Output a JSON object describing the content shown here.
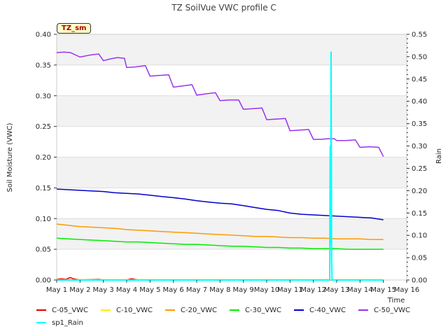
{
  "chart_data": {
    "type": "line",
    "title": "TZ SoilVue VWC profile C",
    "site_label": "TZ_sm",
    "xlabel": "Time",
    "ylabel": "Soil Moisture (VWC)",
    "y2label": "Rain",
    "xlim": [
      1,
      16
    ],
    "ylim": [
      0,
      0.4
    ],
    "y2lim": [
      0,
      0.55
    ],
    "x_tick_values": [
      1,
      2,
      3,
      4,
      5,
      6,
      7,
      8,
      9,
      10,
      11,
      12,
      13,
      14,
      15,
      16
    ],
    "x_tick_labels": [
      "May 1",
      "May 2",
      "May 3",
      "May 4",
      "May 5",
      "May 6",
      "May 7",
      "May 8",
      "May 9",
      "May 10",
      "May 11",
      "May 12",
      "May 13",
      "May 14",
      "May 15",
      "May 16"
    ],
    "y_ticks": [
      0.0,
      0.05,
      0.1,
      0.15,
      0.2,
      0.25,
      0.3,
      0.35,
      0.4
    ],
    "y_tick_labels": [
      "0.00",
      "0.05",
      "0.10",
      "0.15",
      "0.20",
      "0.25",
      "0.30",
      "0.35",
      "0.40"
    ],
    "y2_ticks": [
      0.0,
      0.05,
      0.1,
      0.15,
      0.2,
      0.25,
      0.3,
      0.35,
      0.4,
      0.45,
      0.5,
      0.55
    ],
    "y2_tick_labels": [
      "0.00",
      "0.05",
      "0.10",
      "0.15",
      "0.20",
      "0.25",
      "0.30",
      "0.35",
      "0.40",
      "0.45",
      "0.50",
      "0.55"
    ],
    "grid": "horizontal bands",
    "legend_placement": "bottom",
    "series": [
      {
        "name": "C-05_VWC",
        "color": "#dd0000",
        "axis": "left",
        "x": [
          1.0,
          1.2,
          1.4,
          1.5,
          1.6,
          1.7,
          2.0,
          2.8,
          3.0,
          3.5,
          4.0,
          4.2,
          4.5,
          5.0,
          15.0
        ],
        "y": [
          0.001,
          0.002,
          0.001,
          0.003,
          0.004,
          0.002,
          0.0,
          0.001,
          0.0,
          0.0,
          0.0,
          0.002,
          0.0,
          0.0,
          0.0
        ]
      },
      {
        "name": "C-10_VWC",
        "color": "#ffee00",
        "axis": "left",
        "x": [
          1.0,
          15.0
        ],
        "y": [
          0.0005,
          0.0005
        ]
      },
      {
        "name": "C-20_VWC",
        "color": "#ff9900",
        "axis": "left",
        "x": [
          1.0,
          1.5,
          2.0,
          2.5,
          3.0,
          3.5,
          4.0,
          4.5,
          5.0,
          5.5,
          6.0,
          6.5,
          7.0,
          7.5,
          8.0,
          8.5,
          9.0,
          9.5,
          10.0,
          10.5,
          11.0,
          11.5,
          12.0,
          12.5,
          13.0,
          13.5,
          14.0,
          14.5,
          15.0
        ],
        "y": [
          0.091,
          0.089,
          0.087,
          0.086,
          0.085,
          0.084,
          0.082,
          0.081,
          0.08,
          0.079,
          0.078,
          0.077,
          0.076,
          0.075,
          0.074,
          0.073,
          0.072,
          0.071,
          0.071,
          0.07,
          0.069,
          0.069,
          0.068,
          0.068,
          0.067,
          0.067,
          0.067,
          0.066,
          0.066
        ]
      },
      {
        "name": "C-30_VWC",
        "color": "#00ee00",
        "axis": "left",
        "x": [
          1.0,
          1.5,
          2.0,
          2.5,
          3.0,
          3.5,
          4.0,
          4.5,
          5.0,
          5.5,
          6.0,
          6.5,
          7.0,
          7.5,
          8.0,
          8.5,
          9.0,
          9.5,
          10.0,
          10.5,
          11.0,
          11.5,
          12.0,
          12.5,
          13.0,
          13.5,
          14.0,
          14.5,
          15.0
        ],
        "y": [
          0.068,
          0.067,
          0.066,
          0.065,
          0.064,
          0.063,
          0.062,
          0.062,
          0.061,
          0.06,
          0.059,
          0.058,
          0.058,
          0.057,
          0.056,
          0.055,
          0.055,
          0.054,
          0.053,
          0.053,
          0.052,
          0.052,
          0.051,
          0.051,
          0.051,
          0.05,
          0.05,
          0.05,
          0.05
        ]
      },
      {
        "name": "C-40_VWC",
        "color": "#0000cc",
        "axis": "left",
        "x": [
          1.0,
          1.5,
          2.0,
          2.5,
          3.0,
          3.5,
          4.0,
          4.5,
          5.0,
          5.5,
          6.0,
          6.5,
          7.0,
          7.5,
          8.0,
          8.5,
          9.0,
          9.5,
          10.0,
          10.5,
          11.0,
          11.5,
          12.0,
          12.5,
          13.0,
          13.5,
          14.0,
          14.5,
          15.0
        ],
        "y": [
          0.148,
          0.147,
          0.146,
          0.145,
          0.144,
          0.142,
          0.141,
          0.14,
          0.138,
          0.136,
          0.134,
          0.132,
          0.129,
          0.127,
          0.125,
          0.124,
          0.121,
          0.118,
          0.115,
          0.113,
          0.109,
          0.107,
          0.106,
          0.105,
          0.104,
          0.103,
          0.102,
          0.101,
          0.098
        ]
      },
      {
        "name": "C-50_VWC",
        "color": "#9933ee",
        "axis": "left",
        "x": [
          1.0,
          1.3,
          1.6,
          2.0,
          2.4,
          2.8,
          3.0,
          3.3,
          3.6,
          3.9,
          4.0,
          4.4,
          4.8,
          5.0,
          5.4,
          5.8,
          6.0,
          6.4,
          6.8,
          7.0,
          7.4,
          7.8,
          8.0,
          8.4,
          8.8,
          9.0,
          9.4,
          9.8,
          10.0,
          10.4,
          10.8,
          11.0,
          11.4,
          11.8,
          12.0,
          12.3,
          12.6,
          12.9,
          13.0,
          13.4,
          13.8,
          14.0,
          14.4,
          14.8,
          15.0
        ],
        "y": [
          0.37,
          0.371,
          0.37,
          0.363,
          0.366,
          0.368,
          0.357,
          0.36,
          0.362,
          0.361,
          0.346,
          0.347,
          0.349,
          0.332,
          0.333,
          0.334,
          0.314,
          0.316,
          0.318,
          0.301,
          0.303,
          0.305,
          0.292,
          0.293,
          0.293,
          0.278,
          0.279,
          0.28,
          0.261,
          0.262,
          0.263,
          0.243,
          0.244,
          0.245,
          0.229,
          0.229,
          0.23,
          0.23,
          0.227,
          0.227,
          0.228,
          0.216,
          0.217,
          0.216,
          0.201
        ]
      },
      {
        "name": "sp1_Rain",
        "color": "#00ffff",
        "axis": "right",
        "x": [
          1.0,
          12.7,
          12.72,
          12.74,
          12.76,
          12.78,
          12.8,
          15.0
        ],
        "y": [
          0.0,
          0.0,
          0.3,
          0.08,
          0.51,
          0.05,
          0.0,
          0.0
        ]
      }
    ]
  }
}
